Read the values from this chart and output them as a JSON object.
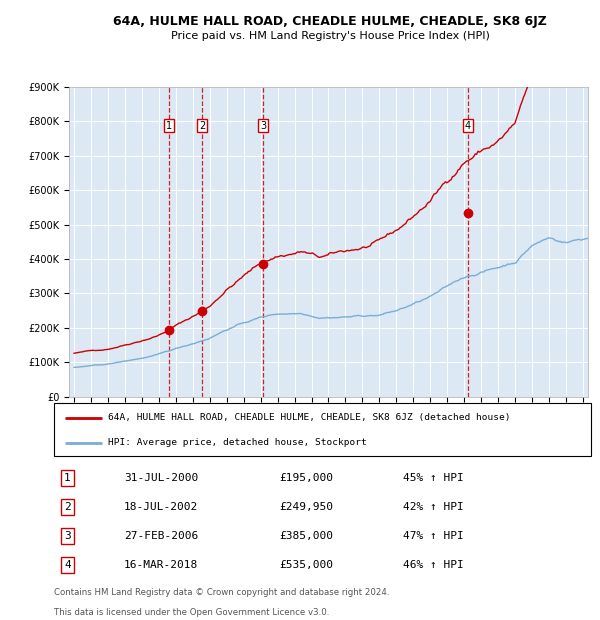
{
  "title": "64A, HULME HALL ROAD, CHEADLE HULME, CHEADLE, SK8 6JZ",
  "subtitle": "Price paid vs. HM Land Registry's House Price Index (HPI)",
  "plot_bg_color": "#dce9f5",
  "x_start_year": 1995,
  "x_end_year": 2025,
  "y_min": 0,
  "y_max": 900000,
  "y_ticks": [
    0,
    100000,
    200000,
    300000,
    400000,
    500000,
    600000,
    700000,
    800000,
    900000
  ],
  "y_tick_labels": [
    "£0",
    "£100K",
    "£200K",
    "£300K",
    "£400K",
    "£500K",
    "£600K",
    "£700K",
    "£800K",
    "£900K"
  ],
  "x_tick_years": [
    1995,
    1996,
    1997,
    1998,
    1999,
    2000,
    2001,
    2002,
    2003,
    2004,
    2005,
    2006,
    2007,
    2008,
    2009,
    2010,
    2011,
    2012,
    2013,
    2014,
    2015,
    2016,
    2017,
    2018,
    2019,
    2020,
    2021,
    2022,
    2023,
    2024,
    2025
  ],
  "sale_line_color": "#cc0000",
  "hpi_line_color": "#7aadd4",
  "vline_color": "#cc0000",
  "marker_color": "#cc0000",
  "sales": [
    {
      "label": "1",
      "date_x": 2000.58,
      "price": 195000,
      "date_str": "31-JUL-2000",
      "price_str": "£195,000",
      "pct": "45%",
      "arrow": "↑"
    },
    {
      "label": "2",
      "date_x": 2002.54,
      "price": 249950,
      "date_str": "18-JUL-2002",
      "price_str": "£249,950",
      "pct": "42%",
      "arrow": "↑"
    },
    {
      "label": "3",
      "date_x": 2006.16,
      "price": 385000,
      "date_str": "27-FEB-2006",
      "price_str": "£385,000",
      "pct": "47%",
      "arrow": "↑"
    },
    {
      "label": "4",
      "date_x": 2018.21,
      "price": 535000,
      "date_str": "16-MAR-2018",
      "price_str": "£535,000",
      "pct": "46%",
      "arrow": "↑"
    }
  ],
  "legend_line1": "64A, HULME HALL ROAD, CHEADLE HULME, CHEADLE, SK8 6JZ (detached house)",
  "legend_line2": "HPI: Average price, detached house, Stockport",
  "footer_line1": "Contains HM Land Registry data © Crown copyright and database right 2024.",
  "footer_line2": "This data is licensed under the Open Government Licence v3.0."
}
